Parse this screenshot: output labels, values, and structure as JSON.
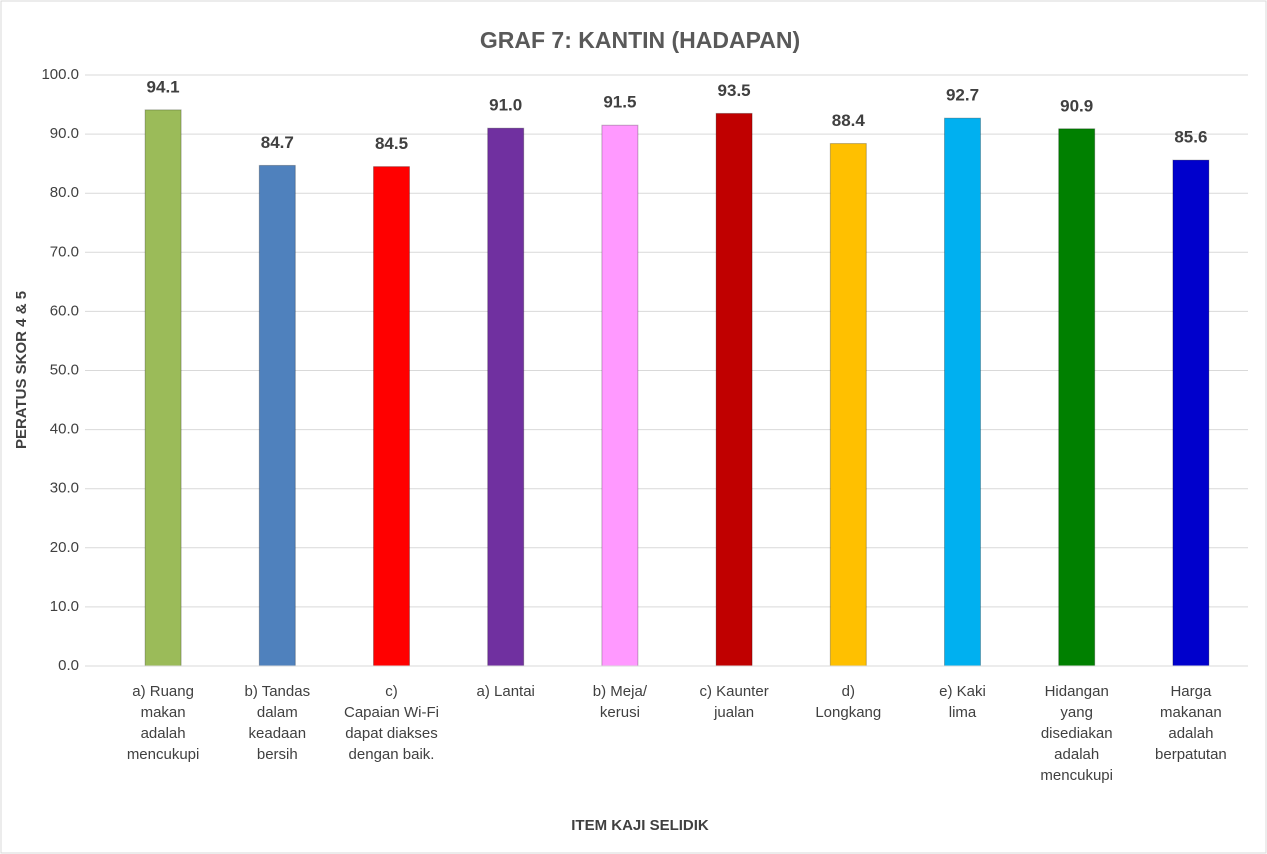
{
  "chart_data": {
    "type": "bar",
    "title": "GRAF 7: KANTIN (HADAPAN)",
    "x_label": "ITEM KAJI SELIDIK",
    "y_label": "PERATUS SKOR 4 & 5",
    "categories": [
      "a) Ruang\nmakan\nadalah\nmencukupi",
      "b) Tandas\ndalam\nkeadaan\nbersih",
      "c)\nCapaian Wi-Fi\ndapat diakses\ndengan baik.",
      "a) Lantai",
      "b) Meja/\nkerusi",
      "c) Kaunter\njualan",
      "d)\nLongkang",
      "e) Kaki\nlima",
      "Hidangan\nyang\ndisediakan\nadalah\nmencukupi",
      "Harga\nmakanan\nadalah\nberpatutan"
    ],
    "values": [
      94.1,
      84.7,
      84.5,
      91,
      91.5,
      93.5,
      88.4,
      92.7,
      90.9,
      85.6
    ],
    "value_labels": [
      "94.1",
      "84.7",
      "84.5",
      "91.0",
      "91.5",
      "93.5",
      "88.4",
      "92.7",
      "90.9",
      "85.6"
    ],
    "colors": [
      "#9bbb59",
      "#4f81bd",
      "#ff0000",
      "#7030a0",
      "#ff99ff",
      "#c00000",
      "#ffc000",
      "#00b0f0",
      "#008000",
      "#0000cc"
    ],
    "ylim": [
      0,
      100
    ],
    "yticks": [
      {
        "value": 0,
        "label": "0.0"
      },
      {
        "value": 10,
        "label": "10.0"
      },
      {
        "value": 20,
        "label": "20.0"
      },
      {
        "value": 30,
        "label": "30.0"
      },
      {
        "value": 40,
        "label": "40.0"
      },
      {
        "value": 50,
        "label": "50.0"
      },
      {
        "value": 60,
        "label": "60.0"
      },
      {
        "value": 70,
        "label": "70.0"
      },
      {
        "value": 80,
        "label": "80.0"
      },
      {
        "value": 90,
        "label": "90.0"
      },
      {
        "value": 100,
        "label": "100.0"
      }
    ],
    "grid": true
  }
}
